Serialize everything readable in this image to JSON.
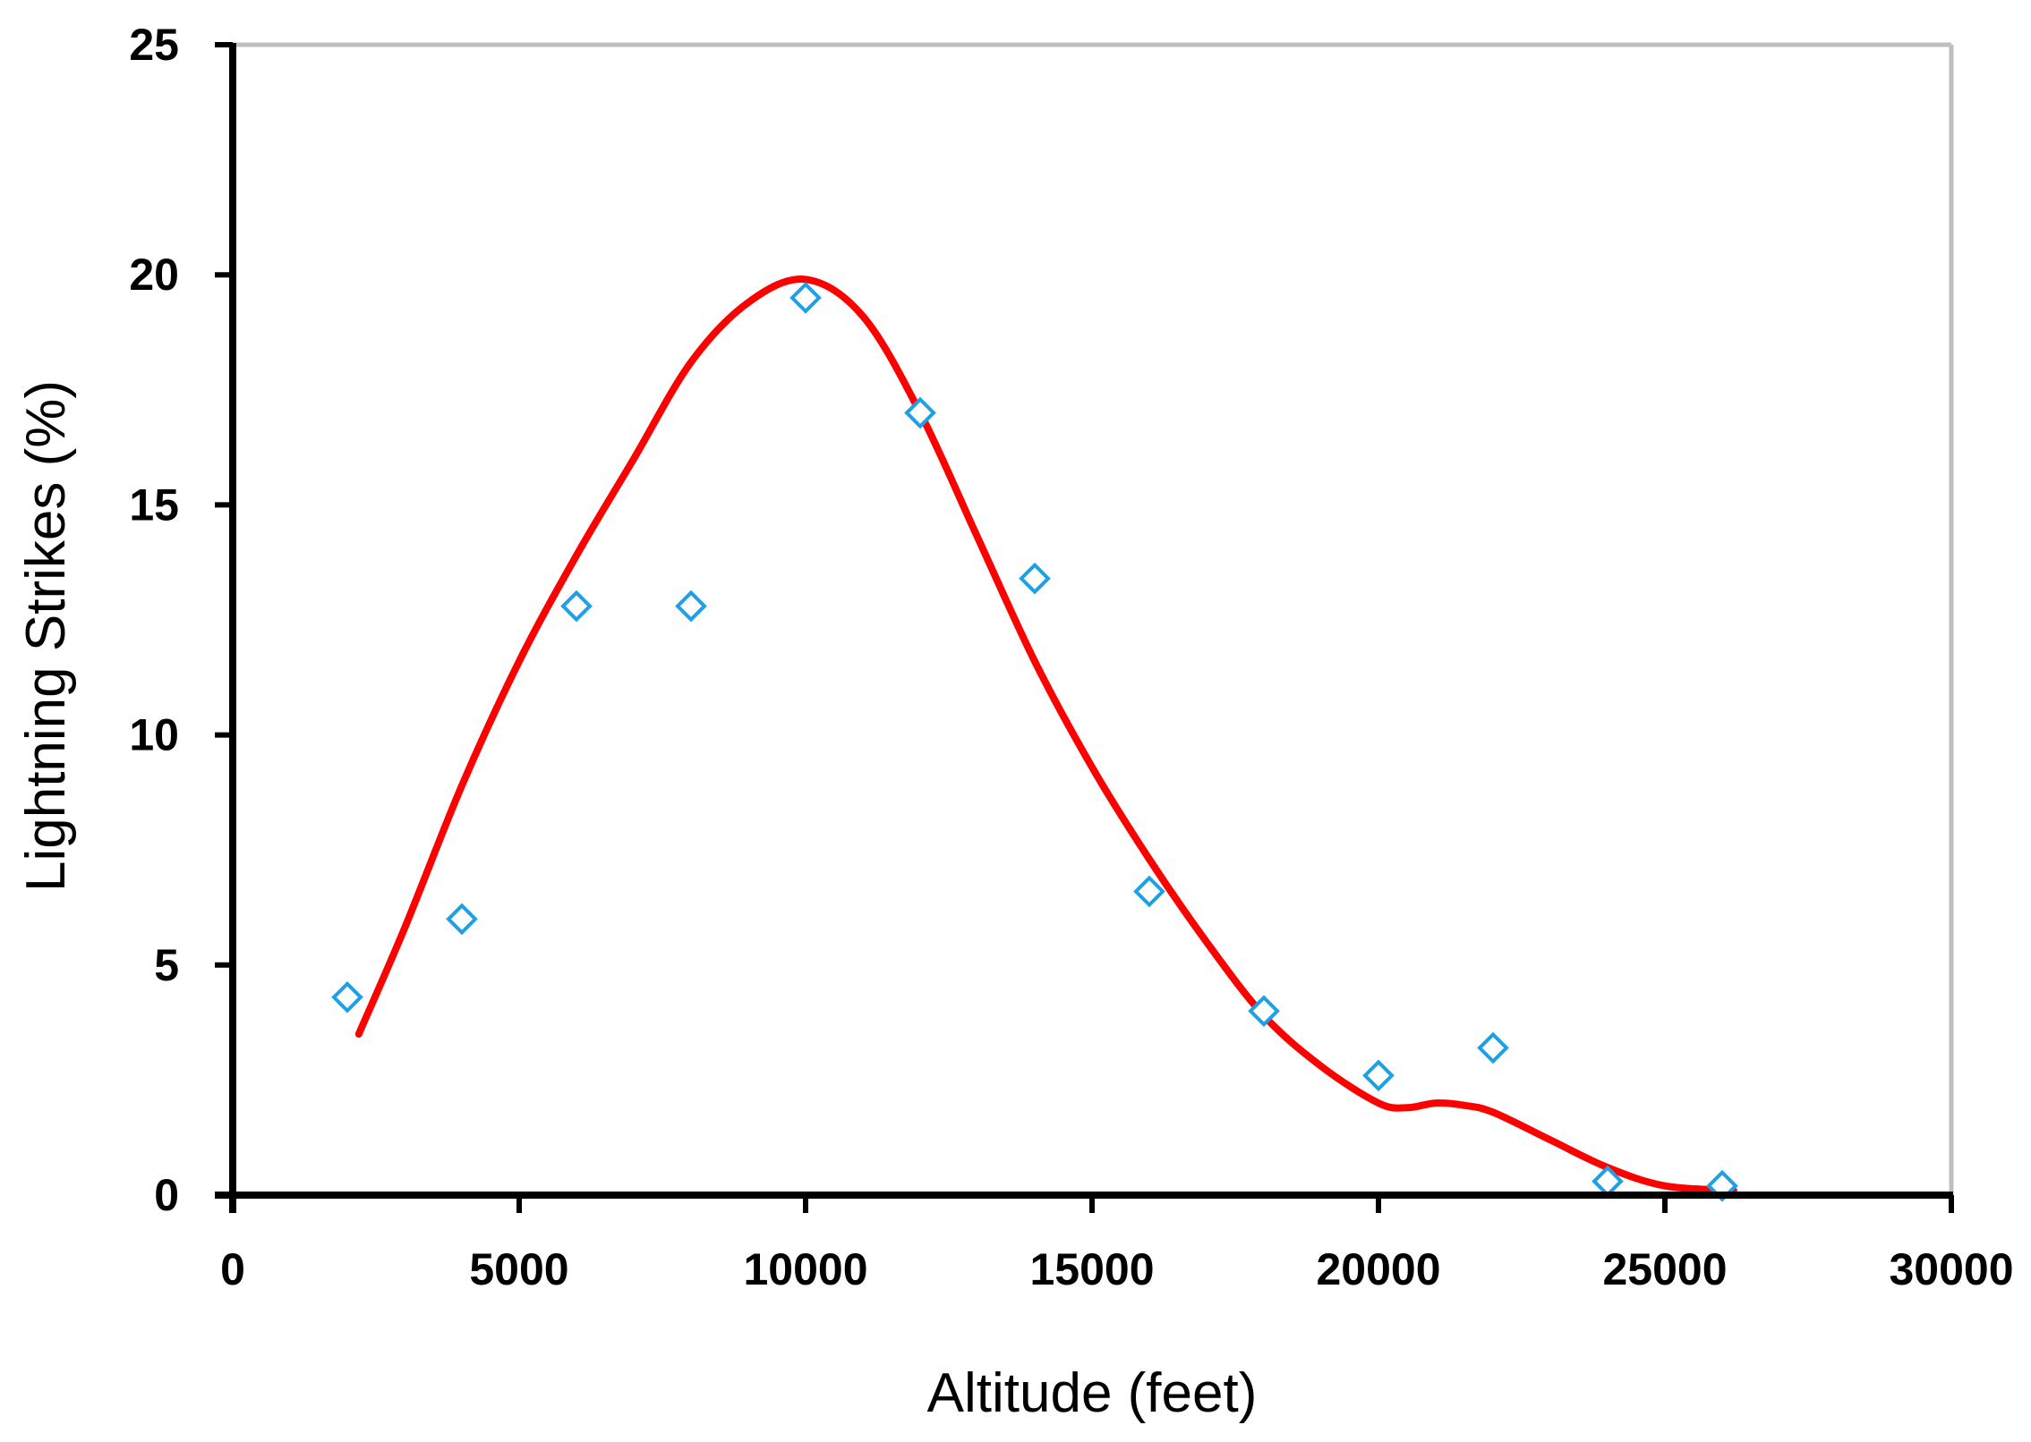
{
  "chart_data": {
    "type": "scatter",
    "title": "",
    "xlabel": "Altitude (feet)",
    "ylabel": "Lightning Strikes (%)",
    "xlim": [
      0,
      30000
    ],
    "ylim": [
      0,
      25
    ],
    "x_ticks": [
      "0",
      "5000",
      "10000",
      "15000",
      "20000",
      "25000",
      "30000"
    ],
    "y_ticks": [
      "0",
      "5",
      "10",
      "15",
      "20",
      "25"
    ],
    "grid": false,
    "legend": "none",
    "series": [
      {
        "kind": "markers",
        "marker": "diamond-open",
        "color": "#1EA0E6",
        "x": [
          2000,
          4000,
          6000,
          8000,
          10000,
          12000,
          14000,
          16000,
          18000,
          20000,
          22000,
          24000,
          26000
        ],
        "y": [
          4.3,
          6.0,
          12.8,
          12.8,
          19.5,
          17.0,
          13.4,
          6.6,
          4.0,
          2.6,
          3.2,
          0.3,
          0.2
        ]
      },
      {
        "kind": "trend-curve",
        "color": "#FF0000",
        "x": [
          2200,
          3000,
          4000,
          5000,
          6000,
          7000,
          8000,
          9000,
          10000,
          11000,
          12000,
          13000,
          14000,
          15000,
          16000,
          17000,
          18000,
          19000,
          20000,
          20500,
          21000,
          21500,
          22000,
          23000,
          24000,
          25000,
          26200
        ],
        "y": [
          3.5,
          5.8,
          8.9,
          11.6,
          13.9,
          16.0,
          18.1,
          19.4,
          19.9,
          19.1,
          17.0,
          14.3,
          11.6,
          9.3,
          7.3,
          5.5,
          3.9,
          2.8,
          2.0,
          1.9,
          2.0,
          1.95,
          1.8,
          1.2,
          0.6,
          0.2,
          0.1
        ]
      }
    ]
  }
}
